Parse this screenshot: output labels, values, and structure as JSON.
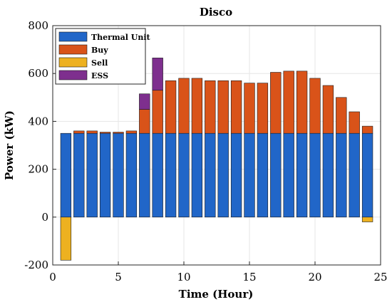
{
  "chart_data": {
    "type": "bar",
    "stacked": true,
    "title": "Disco",
    "xlabel": "Time (Hour)",
    "ylabel": "Power (kW)",
    "xlim": [
      0,
      25
    ],
    "ylim": [
      -200,
      800
    ],
    "xticks": [
      0,
      5,
      10,
      15,
      20,
      25
    ],
    "yticks": [
      -200,
      0,
      200,
      400,
      600,
      800
    ],
    "grid": true,
    "legend_position": "top-left",
    "x": [
      1,
      2,
      3,
      4,
      5,
      6,
      7,
      8,
      9,
      10,
      11,
      12,
      13,
      14,
      15,
      16,
      17,
      18,
      19,
      20,
      21,
      22,
      23,
      24
    ],
    "series": [
      {
        "name": "Thermal Unit",
        "color": "#2166c8",
        "values": [
          350,
          350,
          350,
          350,
          350,
          350,
          350,
          350,
          350,
          350,
          350,
          350,
          350,
          350,
          350,
          350,
          350,
          350,
          350,
          350,
          350,
          350,
          350,
          350
        ]
      },
      {
        "name": "Buy",
        "color": "#d95319",
        "values": [
          0,
          10,
          10,
          5,
          5,
          10,
          100,
          180,
          220,
          230,
          230,
          220,
          220,
          220,
          210,
          210,
          255,
          260,
          260,
          230,
          200,
          150,
          90,
          30
        ]
      },
      {
        "name": "Sell",
        "color": "#edb120",
        "values": [
          -180,
          0,
          0,
          0,
          0,
          0,
          0,
          0,
          0,
          0,
          0,
          0,
          0,
          0,
          0,
          0,
          0,
          0,
          0,
          0,
          0,
          0,
          0,
          -20
        ]
      },
      {
        "name": "ESS",
        "color": "#7e2f8e",
        "values": [
          0,
          0,
          0,
          0,
          0,
          0,
          65,
          135,
          0,
          0,
          0,
          0,
          0,
          0,
          0,
          0,
          0,
          0,
          0,
          0,
          0,
          0,
          0,
          0
        ]
      }
    ]
  }
}
